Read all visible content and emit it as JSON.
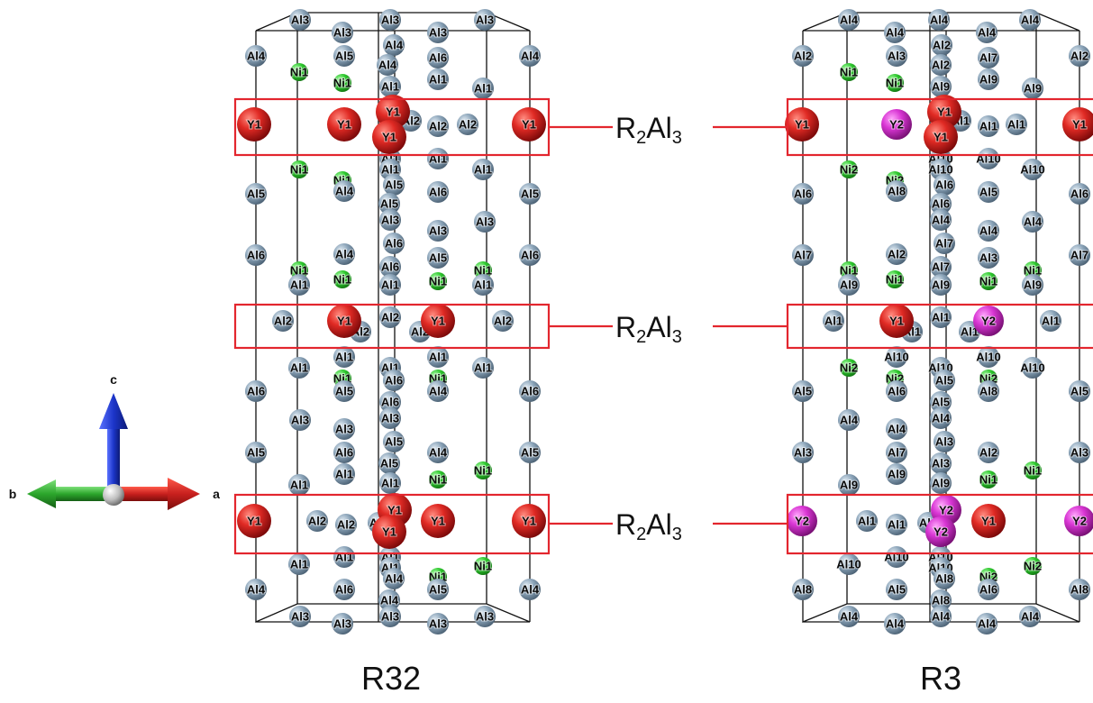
{
  "colors": {
    "Y1": "#d81e1e",
    "Y2": "#d42fd0",
    "Al": "#7f98ad",
    "Ni": "#2fc22f",
    "box": "#e3262e",
    "axis_a": "#c8201e",
    "axis_b": "#2ca62c",
    "axis_c": "#1c35c9"
  },
  "axes": {
    "a": "a",
    "b": "b",
    "c": "c"
  },
  "annotation": "R2Al3",
  "structures": [
    {
      "name": "R32",
      "atoms": [
        [
          "Al3",
          333,
          22
        ],
        [
          "Al3",
          433,
          22
        ],
        [
          "Al3",
          538,
          22
        ],
        [
          "Al3",
          380,
          36
        ],
        [
          "Al3",
          486,
          36
        ],
        [
          "Al4",
          437,
          50
        ],
        [
          "Al4",
          284,
          62
        ],
        [
          "Al5",
          382,
          62
        ],
        [
          "Al4",
          430,
          72
        ],
        [
          "Al6",
          486,
          64
        ],
        [
          "Al4",
          588,
          62
        ],
        [
          "Ni1",
          332,
          80
        ],
        [
          "Ni1",
          380,
          92
        ],
        [
          "Al1",
          433,
          96
        ],
        [
          "Al1",
          486,
          88
        ],
        [
          "Al1",
          536,
          98
        ],
        [
          "Y1",
          282,
          138
        ],
        [
          "Y1",
          382,
          138
        ],
        [
          "Y1",
          436,
          124
        ],
        [
          "Al2",
          456,
          134
        ],
        [
          "Al2",
          486,
          140
        ],
        [
          "Al2",
          519,
          138
        ],
        [
          "Y1",
          432,
          152
        ],
        [
          "Y1",
          587,
          138
        ],
        [
          "Al1",
          433,
          176
        ],
        [
          "Al1",
          486,
          176
        ],
        [
          "Ni1",
          332,
          188
        ],
        [
          "Al1",
          433,
          188
        ],
        [
          "Ni1",
          380,
          200
        ],
        [
          "Al1",
          536,
          188
        ],
        [
          "Al5",
          437,
          205
        ],
        [
          "Al4",
          382,
          212
        ],
        [
          "Al5",
          284,
          215
        ],
        [
          "Al6",
          486,
          213
        ],
        [
          "Al5",
          588,
          215
        ],
        [
          "Al5",
          432,
          226
        ],
        [
          "Al3",
          433,
          244
        ],
        [
          "Al3",
          486,
          256
        ],
        [
          "Al3",
          538,
          246
        ],
        [
          "Al6",
          437,
          270
        ],
        [
          "Al6",
          284,
          283
        ],
        [
          "Al4",
          382,
          282
        ],
        [
          "Al5",
          486,
          286
        ],
        [
          "Al6",
          588,
          283
        ],
        [
          "Al6",
          433,
          296
        ],
        [
          "Ni1",
          332,
          300
        ],
        [
          "Ni1",
          380,
          310
        ],
        [
          "Al1",
          332,
          316
        ],
        [
          "Al1",
          433,
          316
        ],
        [
          "Ni1",
          486,
          312
        ],
        [
          "Ni1",
          536,
          300
        ],
        [
          "Al1",
          536,
          316
        ],
        [
          "Al2",
          314,
          356
        ],
        [
          "Y1",
          382,
          356
        ],
        [
          "Al2",
          433,
          352
        ],
        [
          "Y1",
          486,
          356
        ],
        [
          "Al2",
          558,
          356
        ],
        [
          "Al2",
          400,
          368
        ],
        [
          "Al2",
          466,
          368
        ],
        [
          "Al1",
          382,
          396
        ],
        [
          "Al1",
          486,
          396
        ],
        [
          "Al1",
          332,
          408
        ],
        [
          "Al1",
          433,
          408
        ],
        [
          "Al1",
          536,
          408
        ],
        [
          "Ni1",
          380,
          420
        ],
        [
          "Al6",
          437,
          422
        ],
        [
          "Ni1",
          486,
          420
        ],
        [
          "Al6",
          284,
          434
        ],
        [
          "Al5",
          382,
          434
        ],
        [
          "Al4",
          486,
          434
        ],
        [
          "Al6",
          588,
          434
        ],
        [
          "Al6",
          433,
          446
        ],
        [
          "Al3",
          433,
          464
        ],
        [
          "Al3",
          333,
          466
        ],
        [
          "Al3",
          382,
          476
        ],
        [
          "Al5",
          437,
          490
        ],
        [
          "Al5",
          284,
          502
        ],
        [
          "Al6",
          382,
          502
        ],
        [
          "Al4",
          486,
          502
        ],
        [
          "Al5",
          588,
          502
        ],
        [
          "Al5",
          432,
          514
        ],
        [
          "Al1",
          382,
          526
        ],
        [
          "Al1",
          332,
          538
        ],
        [
          "Ni1",
          486,
          532
        ],
        [
          "Ni1",
          536,
          522
        ],
        [
          "Al1",
          433,
          536
        ],
        [
          "Y1",
          282,
          578
        ],
        [
          "Al2",
          352,
          578
        ],
        [
          "Al2",
          384,
          582
        ],
        [
          "Al2",
          420,
          580
        ],
        [
          "Y1",
          438,
          566
        ],
        [
          "Y1",
          486,
          578
        ],
        [
          "Y1",
          587,
          578
        ],
        [
          "Y1",
          432,
          590
        ],
        [
          "Al1",
          433,
          618
        ],
        [
          "Al1",
          382,
          618
        ],
        [
          "Al1",
          332,
          626
        ],
        [
          "Al1",
          433,
          630
        ],
        [
          "Ni1",
          536,
          628
        ],
        [
          "Al4",
          437,
          642
        ],
        [
          "Ni1",
          486,
          640
        ],
        [
          "Al5",
          486,
          654
        ],
        [
          "Al4",
          284,
          654
        ],
        [
          "Al6",
          382,
          654
        ],
        [
          "Al4",
          432,
          666
        ],
        [
          "Al4",
          588,
          654
        ],
        [
          "Al3",
          333,
          684
        ],
        [
          "Al3",
          433,
          684
        ],
        [
          "Al3",
          538,
          684
        ],
        [
          "Al3",
          380,
          692
        ],
        [
          "Al3",
          486,
          692
        ]
      ]
    },
    {
      "name": "R3",
      "atoms": [
        [
          "Al4",
          942,
          22
        ],
        [
          "Al4",
          1042,
          22
        ],
        [
          "Al4",
          1143,
          22
        ],
        [
          "Al4",
          993,
          36
        ],
        [
          "Al4",
          1095,
          36
        ],
        [
          "Al2",
          1045,
          50
        ],
        [
          "Al2",
          891,
          62
        ],
        [
          "Al3",
          995,
          62
        ],
        [
          "Al2",
          1044,
          72
        ],
        [
          "Al7",
          1097,
          64
        ],
        [
          "Al2",
          1198,
          62
        ],
        [
          "Ni1",
          942,
          80
        ],
        [
          "Ni1",
          993,
          92
        ],
        [
          "Al9",
          1044,
          96
        ],
        [
          "Al9",
          1097,
          88
        ],
        [
          "Al9",
          1146,
          98
        ],
        [
          "Y1",
          890,
          138
        ],
        [
          "Y2",
          995,
          138
        ],
        [
          "Y1",
          1048,
          124
        ],
        [
          "Al1",
          1066,
          134
        ],
        [
          "Al1",
          1097,
          140
        ],
        [
          "Al1",
          1128,
          138
        ],
        [
          "Y1",
          1044,
          152
        ],
        [
          "Y1",
          1198,
          138
        ],
        [
          "Al10",
          1044,
          176
        ],
        [
          "Al10",
          1097,
          176
        ],
        [
          "Ni2",
          942,
          188
        ],
        [
          "Al10",
          1044,
          188
        ],
        [
          "Ni2",
          993,
          200
        ],
        [
          "Al10",
          1146,
          188
        ],
        [
          "Al6",
          1048,
          205
        ],
        [
          "Al8",
          995,
          212
        ],
        [
          "Al6",
          891,
          215
        ],
        [
          "Al5",
          1097,
          213
        ],
        [
          "Al6",
          1198,
          215
        ],
        [
          "Al6",
          1044,
          226
        ],
        [
          "Al4",
          1044,
          244
        ],
        [
          "Al4",
          1097,
          256
        ],
        [
          "Al4",
          1146,
          246
        ],
        [
          "Al7",
          1048,
          270
        ],
        [
          "Al7",
          891,
          283
        ],
        [
          "Al2",
          995,
          282
        ],
        [
          "Al3",
          1097,
          286
        ],
        [
          "Al7",
          1198,
          283
        ],
        [
          "Al7",
          1044,
          296
        ],
        [
          "Ni1",
          942,
          300
        ],
        [
          "Ni1",
          993,
          310
        ],
        [
          "Al9",
          942,
          316
        ],
        [
          "Al9",
          1044,
          316
        ],
        [
          "Ni1",
          1097,
          312
        ],
        [
          "Ni1",
          1146,
          300
        ],
        [
          "Al9",
          1146,
          316
        ],
        [
          "Al1",
          925,
          356
        ],
        [
          "Y1",
          995,
          356
        ],
        [
          "Al1",
          1044,
          352
        ],
        [
          "Y2",
          1097,
          356
        ],
        [
          "Al1",
          1166,
          356
        ],
        [
          "Al1",
          1012,
          368
        ],
        [
          "Al1",
          1076,
          368
        ],
        [
          "Al10",
          995,
          396
        ],
        [
          "Al10",
          1097,
          396
        ],
        [
          "Ni2",
          942,
          408
        ],
        [
          "Al10",
          1044,
          408
        ],
        [
          "Al10",
          1146,
          408
        ],
        [
          "Ni2",
          993,
          420
        ],
        [
          "Al5",
          1048,
          422
        ],
        [
          "Ni2",
          1097,
          420
        ],
        [
          "Al5",
          891,
          434
        ],
        [
          "Al6",
          995,
          434
        ],
        [
          "Al8",
          1097,
          434
        ],
        [
          "Al5",
          1198,
          434
        ],
        [
          "Al5",
          1044,
          446
        ],
        [
          "Al4",
          1044,
          464
        ],
        [
          "Al4",
          942,
          466
        ],
        [
          "Al4",
          995,
          476
        ],
        [
          "Al3",
          1048,
          490
        ],
        [
          "Al3",
          891,
          502
        ],
        [
          "Al7",
          995,
          502
        ],
        [
          "Al2",
          1097,
          502
        ],
        [
          "Al3",
          1198,
          502
        ],
        [
          "Al3",
          1044,
          514
        ],
        [
          "Al9",
          995,
          526
        ],
        [
          "Al9",
          942,
          538
        ],
        [
          "Ni1",
          1097,
          532
        ],
        [
          "Ni1",
          1146,
          522
        ],
        [
          "Al9",
          1044,
          536
        ],
        [
          "Y2",
          890,
          578
        ],
        [
          "Al1",
          962,
          578
        ],
        [
          "Al1",
          995,
          582
        ],
        [
          "Al1",
          1030,
          580
        ],
        [
          "Y2",
          1050,
          566
        ],
        [
          "Y1",
          1097,
          578
        ],
        [
          "Y2",
          1198,
          578
        ],
        [
          "Y2",
          1044,
          590
        ],
        [
          "Al10",
          1044,
          618
        ],
        [
          "Al10",
          995,
          618
        ],
        [
          "Al10",
          942,
          626
        ],
        [
          "Al10",
          1044,
          630
        ],
        [
          "Ni2",
          1146,
          628
        ],
        [
          "Al8",
          1048,
          642
        ],
        [
          "Ni2",
          1097,
          640
        ],
        [
          "Al6",
          1097,
          654
        ],
        [
          "Al8",
          891,
          654
        ],
        [
          "Al5",
          995,
          654
        ],
        [
          "Al8",
          1044,
          666
        ],
        [
          "Al8",
          1198,
          654
        ],
        [
          "Al4",
          942,
          684
        ],
        [
          "Al4",
          1044,
          684
        ],
        [
          "Al4",
          1143,
          684
        ],
        [
          "Al4",
          993,
          692
        ],
        [
          "Al4",
          1095,
          692
        ]
      ]
    }
  ]
}
